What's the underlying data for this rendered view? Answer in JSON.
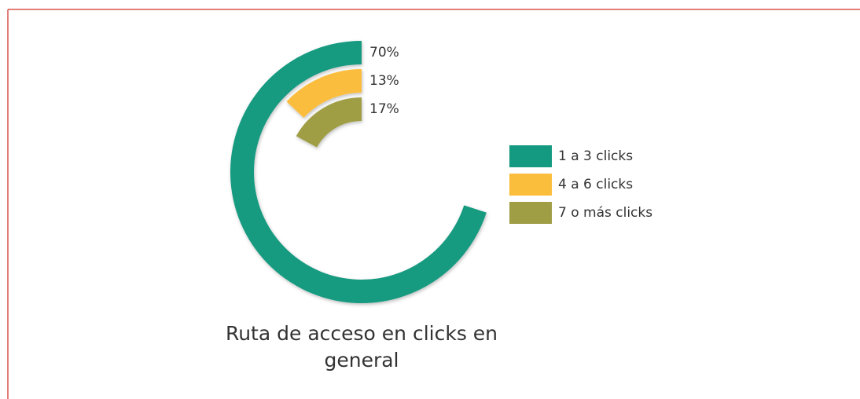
{
  "chart_data": {
    "type": "radialbar",
    "title": "Ruta de acceso en clicks en general",
    "categories": [
      "1 a 3 clicks",
      "4 a 6 clicks",
      "7 o más clicks"
    ],
    "values": [
      70,
      13,
      17
    ],
    "value_labels": [
      "70%",
      "13%",
      "17%"
    ],
    "colors": [
      "#139a80",
      "#fbbd3c",
      "#a09e45"
    ],
    "legend": "right"
  }
}
